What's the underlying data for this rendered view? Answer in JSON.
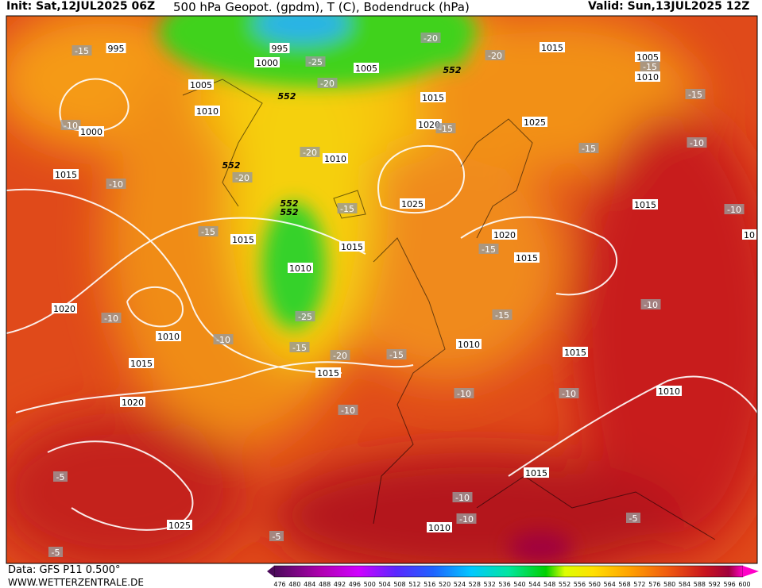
{
  "header": {
    "init": "Init: Sat,12JUL2025 06Z",
    "title": "500 hPa Geopot. (gpdm), T (C), Bodendruck (hPa)",
    "valid": "Valid: Sun,13JUL2025 12Z"
  },
  "footer": {
    "source": "Data: GFS P11 0.500°",
    "website": "WWW.WETTERZENTRALE.DE"
  },
  "colorbar": {
    "labels": [
      476,
      480,
      484,
      488,
      492,
      496,
      500,
      504,
      508,
      512,
      516,
      520,
      524,
      528,
      532,
      536,
      540,
      544,
      548,
      552,
      556,
      560,
      564,
      568,
      572,
      576,
      580,
      584,
      588,
      592,
      596,
      600
    ]
  },
  "map_labels": [
    "995",
    "-15",
    "995",
    "1000",
    "-25",
    "1005",
    "-20",
    "552",
    "-20",
    "1015",
    "1005",
    "-15",
    "1010",
    "1005",
    "-20",
    "552",
    "1015",
    "1010",
    "-15",
    "-10",
    "1000",
    "1020",
    "-15",
    "1025",
    "-15",
    "-10",
    "-20",
    "1010",
    "552",
    "-20",
    "1015",
    "-10",
    "552",
    "552",
    "1025",
    "-15",
    "1015",
    "-10",
    "-15",
    "1015",
    "1020",
    "10",
    "1015",
    "-15",
    "1015",
    "1010",
    "1020",
    "-10",
    "-25",
    "-10",
    "-15",
    "1010",
    "-10",
    "1010",
    "-15",
    "-20",
    "-15",
    "1015",
    "1015",
    "1015",
    "-10",
    "-10",
    "1010",
    "1020",
    "-10",
    "-5",
    "1015",
    "-10",
    "-10",
    "1010",
    "-5",
    "1025",
    "-5",
    "-5"
  ]
}
